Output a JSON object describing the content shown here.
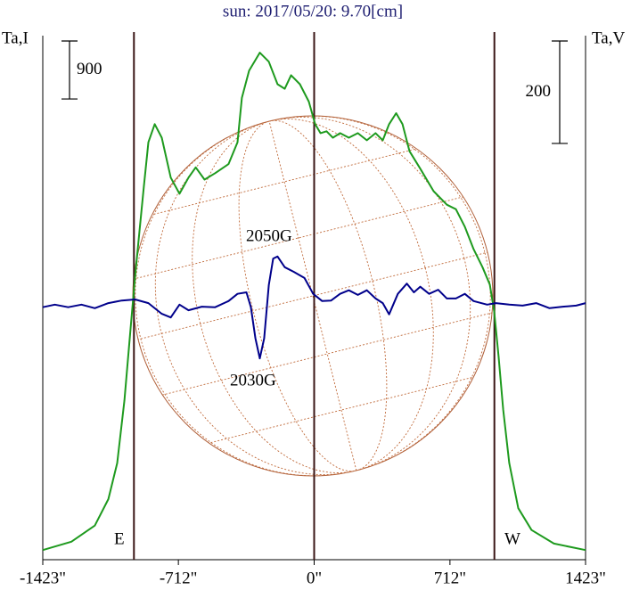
{
  "chart_data": {
    "type": "line",
    "title": "sun: 2017/05/20: 9.70[cm]",
    "ylabel": "Ta,I",
    "y2label": "Ta,V",
    "xlim": [
      -1423,
      1423
    ],
    "xticks": [
      {
        "value": -1423,
        "label": "-1423\""
      },
      {
        "value": -712,
        "label": "-712\""
      },
      {
        "value": 0,
        "label": "0\""
      },
      {
        "value": 712,
        "label": "712\""
      },
      {
        "value": 1423,
        "label": "1423\""
      }
    ],
    "ylim": [
      0,
      8300
    ],
    "y2lim": [
      -496,
      548
    ],
    "vlines": [
      -945,
      0,
      945
    ],
    "scale_bars": [
      {
        "value": 900,
        "axis": "y"
      },
      {
        "value": 200,
        "axis": "y2"
      }
    ],
    "annotations": [
      "2050G",
      "2030G",
      "E",
      "W"
    ],
    "series": [
      {
        "color": "#1e9a1e",
        "x": [
          -1423,
          -1273,
          -1150,
          -1079,
          -1033,
          -995,
          -963,
          -939,
          -916,
          -893,
          -869,
          -836,
          -799,
          -752,
          -706,
          -659,
          -621,
          -575,
          -519,
          -449,
          -402,
          -379,
          -341,
          -285,
          -238,
          -192,
          -154,
          -121,
          -75,
          -28,
          5,
          33,
          65,
          98,
          136,
          182,
          229,
          276,
          322,
          360,
          393,
          430,
          463,
          500,
          556,
          626,
          696,
          743,
          790,
          836,
          883,
          921,
          944,
          967,
          991,
          1023,
          1070,
          1140,
          1257,
          1423
        ],
        "values": [
          150,
          280,
          530,
          940,
          1500,
          2470,
          3570,
          4400,
          5100,
          5790,
          6480,
          6760,
          6550,
          5930,
          5680,
          5930,
          6090,
          5900,
          6000,
          6140,
          6480,
          7170,
          7590,
          7870,
          7730,
          7380,
          7310,
          7520,
          7380,
          7110,
          6760,
          6620,
          6650,
          6550,
          6620,
          6550,
          6620,
          6510,
          6620,
          6510,
          6760,
          6930,
          6760,
          6340,
          6070,
          5720,
          5510,
          5440,
          5170,
          4820,
          4540,
          4270,
          3850,
          3160,
          2330,
          1500,
          800,
          460,
          250,
          150
        ]
      },
      {
        "color": "#00008b",
        "axis": "y2",
        "x": [
          -1423,
          -1360,
          -1290,
          -1220,
          -1150,
          -1079,
          -1009,
          -939,
          -869,
          -799,
          -752,
          -706,
          -659,
          -589,
          -519,
          -449,
          -402,
          -355,
          -332,
          -308,
          -285,
          -262,
          -238,
          -215,
          -192,
          -154,
          -107,
          -51,
          -5,
          42,
          89,
          136,
          182,
          229,
          276,
          322,
          360,
          393,
          439,
          486,
          523,
          556,
          603,
          650,
          696,
          743,
          790,
          836,
          907,
          953,
          1023,
          1093,
          1164,
          1234,
          1304,
          1374,
          1423
        ],
        "values": [
          -3,
          2,
          -3,
          2,
          -5,
          5,
          10,
          12,
          5,
          -16,
          -23,
          2,
          -9,
          -2,
          -3,
          9,
          23,
          26,
          -3,
          -64,
          -103,
          -64,
          40,
          92,
          96,
          75,
          66,
          54,
          23,
          9,
          10,
          23,
          30,
          21,
          30,
          14,
          5,
          -17,
          23,
          43,
          26,
          37,
          23,
          31,
          14,
          14,
          23,
          9,
          2,
          5,
          2,
          0,
          5,
          -5,
          -2,
          0,
          5
        ]
      }
    ]
  }
}
